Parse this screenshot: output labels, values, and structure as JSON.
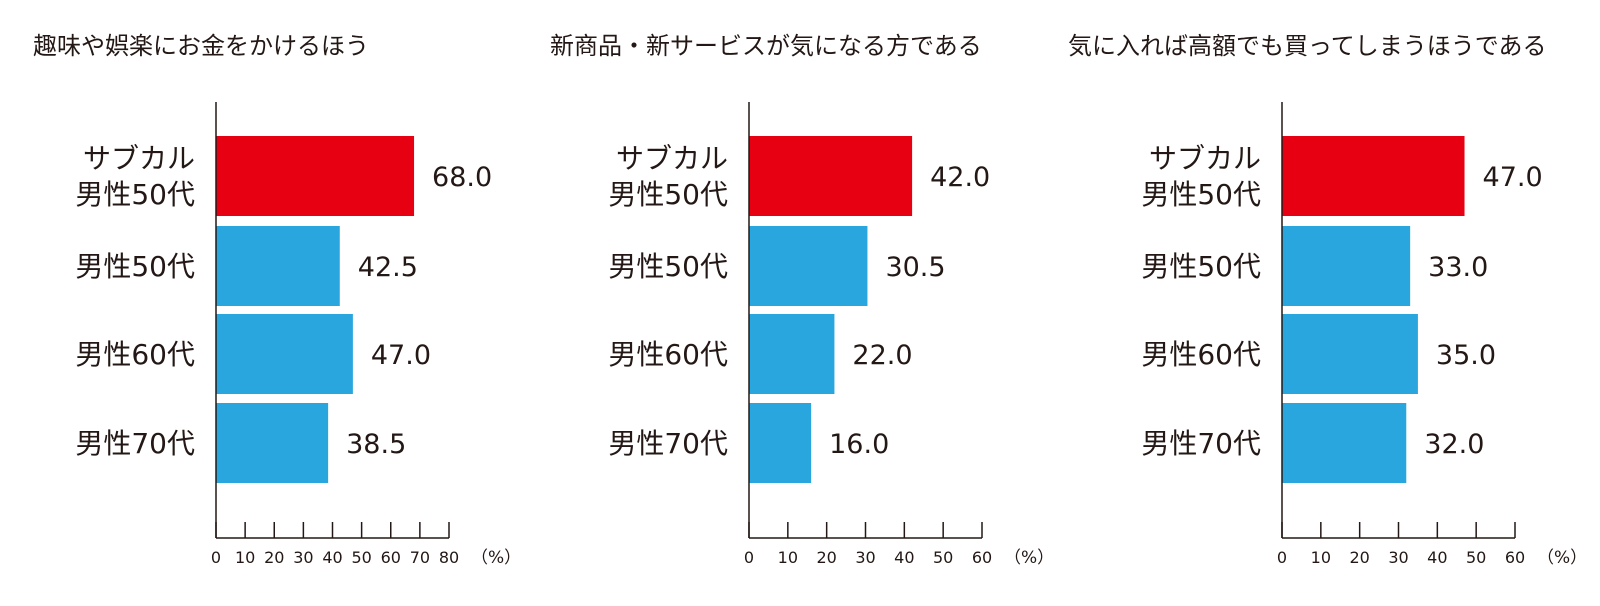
{
  "chart_data": [
    {
      "type": "bar",
      "orientation": "horizontal",
      "title": "趣味や娯楽にお金をかけるほう",
      "categories": [
        [
          "サブカル",
          "男性50代"
        ],
        [
          "男性50代"
        ],
        [
          "男性60代"
        ],
        [
          "男性70代"
        ]
      ],
      "values": [
        68.0,
        42.5,
        47.0,
        38.5
      ],
      "value_labels": [
        "68.0",
        "42.5",
        "47.0",
        "38.5"
      ],
      "xlim": [
        0,
        80
      ],
      "xticks": [
        0,
        10,
        20,
        30,
        40,
        50,
        60,
        70,
        80
      ],
      "unit": "（%）",
      "highlight_color": "#e60012",
      "bar_color": "#29a6de",
      "grid": false
    },
    {
      "type": "bar",
      "orientation": "horizontal",
      "title": "新商品・新サービスが気になる方である",
      "categories": [
        [
          "サブカル",
          "男性50代"
        ],
        [
          "男性50代"
        ],
        [
          "男性60代"
        ],
        [
          "男性70代"
        ]
      ],
      "values": [
        42.0,
        30.5,
        22.0,
        16.0
      ],
      "value_labels": [
        "42.0",
        "30.5",
        "22.0",
        "16.0"
      ],
      "xlim": [
        0,
        60
      ],
      "xticks": [
        0,
        10,
        20,
        30,
        40,
        50,
        60
      ],
      "unit": "（%）",
      "highlight_color": "#e60012",
      "bar_color": "#29a6de",
      "grid": false
    },
    {
      "type": "bar",
      "orientation": "horizontal",
      "title": "気に入れば高額でも買ってしまうほうである",
      "categories": [
        [
          "サブカル",
          "男性50代"
        ],
        [
          "男性50代"
        ],
        [
          "男性60代"
        ],
        [
          "男性70代"
        ]
      ],
      "values": [
        47.0,
        33.0,
        35.0,
        32.0
      ],
      "value_labels": [
        "47.0",
        "33.0",
        "35.0",
        "32.0"
      ],
      "xlim": [
        0,
        60
      ],
      "xticks": [
        0,
        10,
        20,
        30,
        40,
        50,
        60
      ],
      "unit": "（%）",
      "highlight_color": "#e60012",
      "bar_color": "#29a6de",
      "grid": false
    }
  ]
}
